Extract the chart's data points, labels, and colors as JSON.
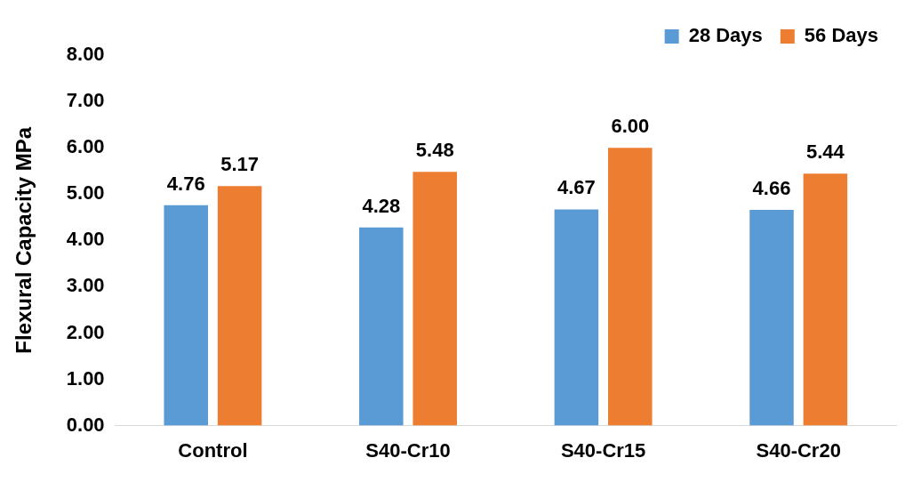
{
  "chart_data": {
    "type": "bar",
    "ylabel": "Flexural Capacity MPa",
    "categories": [
      "Control",
      "S40-Cr10",
      "S40-Cr15",
      "S40-Cr20"
    ],
    "series": [
      {
        "name": "28 Days",
        "color": "#5b9bd5",
        "values": [
          4.76,
          4.28,
          4.67,
          4.66
        ],
        "value_labels": [
          "4.76",
          "4.28",
          "4.67",
          "4.66"
        ]
      },
      {
        "name": "56 Days",
        "color": "#ed7d31",
        "values": [
          5.17,
          5.48,
          6.0,
          5.44
        ],
        "value_labels": [
          "5.17",
          "5.48",
          "6.00",
          "5.44"
        ]
      }
    ],
    "ylim": [
      0,
      8
    ],
    "yticks": [
      {
        "value": 0,
        "label": "0.00"
      },
      {
        "value": 1,
        "label": "1.00"
      },
      {
        "value": 2,
        "label": "2.00"
      },
      {
        "value": 3,
        "label": "3.00"
      },
      {
        "value": 4,
        "label": "4.00"
      },
      {
        "value": 5,
        "label": "5.00"
      },
      {
        "value": 6,
        "label": "6.00"
      },
      {
        "value": 7,
        "label": "7.00"
      },
      {
        "value": 8,
        "label": "8.00"
      }
    ],
    "grid": false,
    "legend": "top right"
  }
}
